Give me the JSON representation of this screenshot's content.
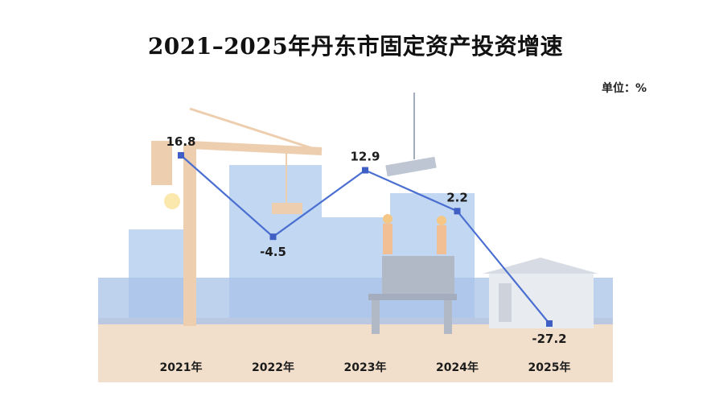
{
  "title": "2021–2025年丹东市固定资产投资增速",
  "unit_label": "单位：%",
  "colors": {
    "line": "#4a6fd1",
    "marker": "#3f5fc4",
    "ground": "#f0dcc6",
    "fence": "#9fbbe6",
    "buildings": "#bcd3f0",
    "crane": "#ecc9a6"
  },
  "chart_data": {
    "type": "line",
    "title": "2021–2025年丹东市固定资产投资增速",
    "ylabel": "单位：%",
    "categories": [
      "2021年",
      "2022年",
      "2023年",
      "2024年",
      "2025年"
    ],
    "series": [
      {
        "values": [
          16.8,
          -4.5,
          12.9,
          2.2,
          -27.2
        ]
      }
    ],
    "data_labels": [
      "16.8",
      "-4.5",
      "12.9",
      "2.2",
      "-27.2"
    ],
    "grid": false,
    "legend": "none"
  }
}
